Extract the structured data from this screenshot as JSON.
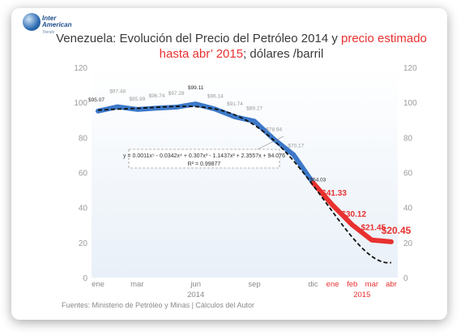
{
  "logo": {
    "line1": "Inter",
    "line2": "American",
    "line3": "Trends"
  },
  "title": {
    "part1": "Venezuela: Evolución del Precio del Petróleo 2014 y ",
    "part2_red": "precio estimado",
    "part3_red": "hasta abr’ 2015",
    "part4": "; dólares /barril"
  },
  "footnote": "Fuentes: Ministerio de Petróleo y Minas | Cálculos del Autor",
  "chart_data": {
    "type": "line",
    "title": "Venezuela: Evolución del Precio del Petróleo 2014 y precio estimado hasta abr’ 2015; dólares /barril",
    "ylim": [
      0,
      120
    ],
    "yticks": [
      0,
      20,
      40,
      60,
      80,
      100,
      120
    ],
    "right_axis": true,
    "grid": false,
    "categories": [
      "ene",
      "",
      "mar",
      "",
      "",
      "jun",
      "",
      "",
      "sep",
      "",
      "",
      "dic",
      "ene",
      "feb",
      "mar",
      "abr"
    ],
    "year_labels": [
      {
        "label": "2014",
        "index": 5
      },
      {
        "label": "2015",
        "index": 13.5
      }
    ],
    "series": [
      {
        "name": "",
        "color": "#3c78c8",
        "values": [
          95.07,
          97.48,
          95.99,
          96.74,
          97.28,
          99.11,
          96.14,
          91.74,
          89.27,
          78.94,
          70.17,
          54.03,
          null,
          null,
          null,
          null
        ],
        "labels": [
          "$95.07",
          "$97.48",
          "$95.99",
          "$96.74",
          "$97.28",
          "$99.11",
          "$96.14",
          "$91.74",
          "$89.27",
          "$78.94",
          "$70.17",
          "$54.03",
          "",
          "",
          "",
          ""
        ]
      },
      {
        "name": "",
        "color": "#e8312f",
        "values": [
          null,
          null,
          null,
          null,
          null,
          null,
          null,
          null,
          null,
          null,
          null,
          54.03,
          41.33,
          30.12,
          21.45,
          20.45
        ],
        "labels": [
          "",
          "",
          "",
          "",
          "",
          "",
          "",
          "",
          "",
          "",
          "",
          "",
          "$41.33",
          "$30.12",
          "$21.45",
          "$20.45"
        ]
      }
    ],
    "trendline": {
      "equation": "y = 0.0011x⁵ - 0.0342x⁴ + 0.307x³ - 1.1437x² + 2.3557x + 94.076",
      "r2": "R² = 0.99877",
      "coefficients": [
        94.076,
        2.3557,
        -1.1437,
        0.307,
        -0.0342,
        0.0011
      ]
    }
  }
}
